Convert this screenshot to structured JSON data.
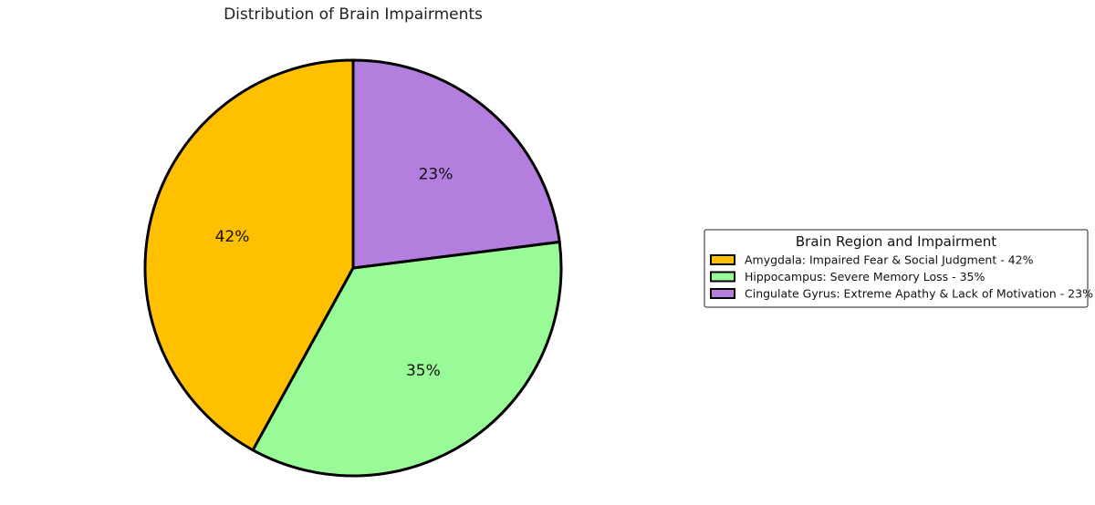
{
  "chart_data": {
    "type": "pie",
    "title": "Distribution of Brain Impairments",
    "start_angle_deg": 90,
    "direction": "counterclockwise",
    "slices": [
      {
        "label": "Amygdala: Impaired Fear & Social Judgment - 42%",
        "value": 42,
        "value_label": "42%",
        "color": "#FFC000"
      },
      {
        "label": "Hippocampus: Severe Memory Loss - 35%",
        "value": 35,
        "value_label": "35%",
        "color": "#98FB98"
      },
      {
        "label": "Cingulate Gyrus: Extreme Apathy & Lack of Motivation - 23%",
        "value": 23,
        "value_label": "23%",
        "color": "#B37EDD"
      }
    ],
    "legend": {
      "title": "Brain Region and Impairment",
      "placement": "center-right"
    }
  }
}
